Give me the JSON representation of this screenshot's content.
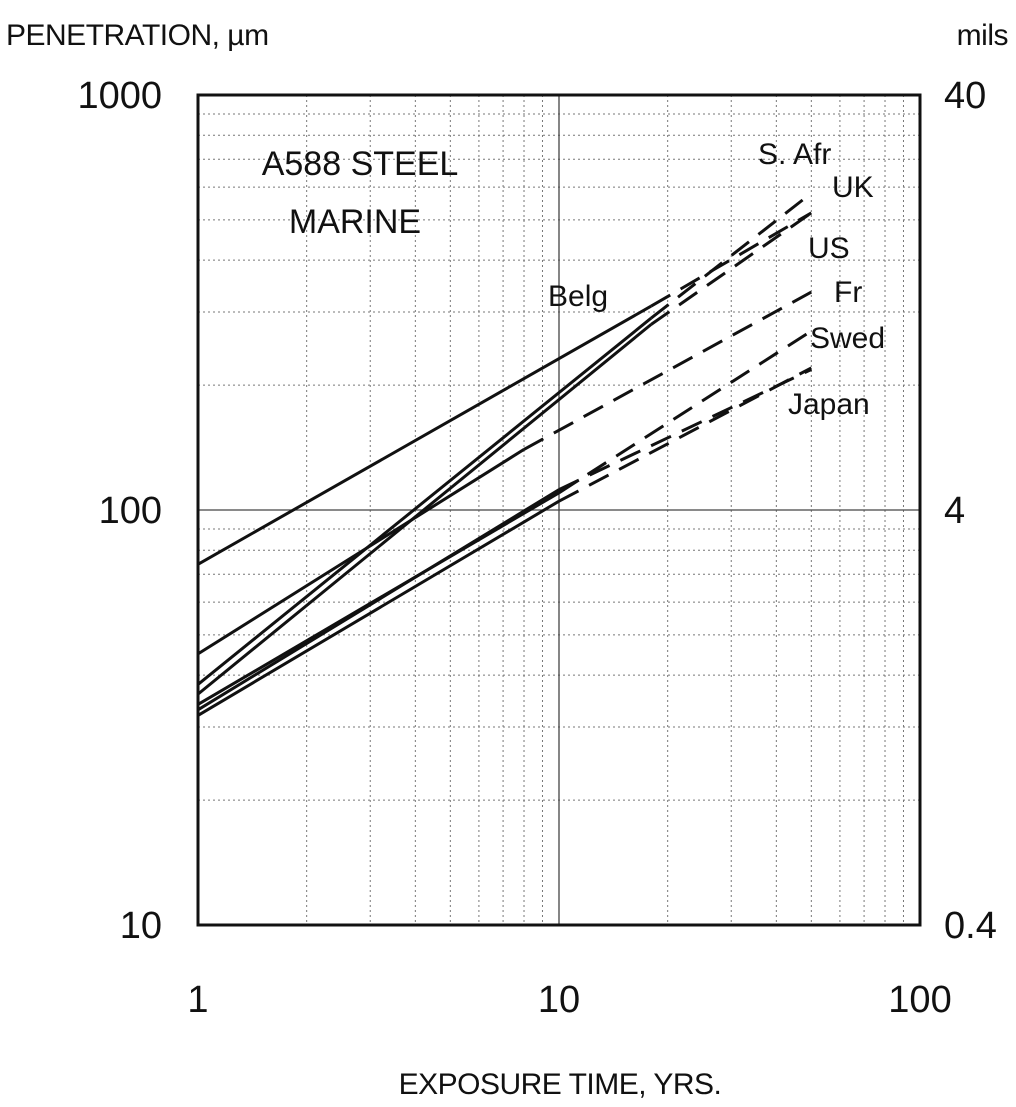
{
  "chart_data": {
    "type": "line",
    "annotation": [
      "A588 STEEL",
      "MARINE"
    ],
    "xlabel": "EXPOSURE TIME, YRS.",
    "ylabel": "PENETRATION, µm",
    "y2label": "mils",
    "xscale": "log",
    "yscale": "log",
    "xlim": [
      1,
      100
    ],
    "ylim": [
      10,
      1000
    ],
    "y2lim": [
      0.4,
      40
    ],
    "x_ticks": [
      "1",
      "10",
      "100"
    ],
    "y_ticks": [
      "10",
      "100",
      "1000"
    ],
    "y2_ticks": [
      "0.4",
      "4",
      "40"
    ],
    "grid": true,
    "legend": "none",
    "series_note": "solid = measured range, dashed = extrapolation",
    "series": [
      {
        "name": "Belg",
        "label_text": "Belg",
        "x": [
          1,
          18,
          50
        ],
        "y": [
          74,
          310,
          520
        ],
        "solid_until": 18
      },
      {
        "name": "S. Afr",
        "label_text": "S. Afr",
        "x": [
          1,
          18,
          50
        ],
        "y": [
          38,
          290,
          580
        ],
        "solid_until": 18
      },
      {
        "name": "UK",
        "label_text": "UK",
        "x": [
          1,
          18,
          50
        ],
        "y": [
          36,
          280,
          520
        ],
        "solid_until": 18
      },
      {
        "name": "US",
        "label_text": "US",
        "x": [
          1,
          8,
          50
        ],
        "y": [
          45,
          140,
          335
        ],
        "solid_until": 8
      },
      {
        "name": "Fr",
        "label_text": "Fr",
        "x": [
          1,
          10,
          50
        ],
        "y": [
          34,
          110,
          270
        ],
        "solid_until": 10
      },
      {
        "name": "Swed",
        "label_text": "Swed",
        "x": [
          1,
          10,
          50
        ],
        "y": [
          32,
          105,
          220
        ],
        "solid_until": 10
      },
      {
        "name": "Japan",
        "label_text": "Japan",
        "x": [
          1,
          10,
          50
        ],
        "y": [
          33,
          112,
          218
        ],
        "solid_until": 10
      }
    ]
  }
}
